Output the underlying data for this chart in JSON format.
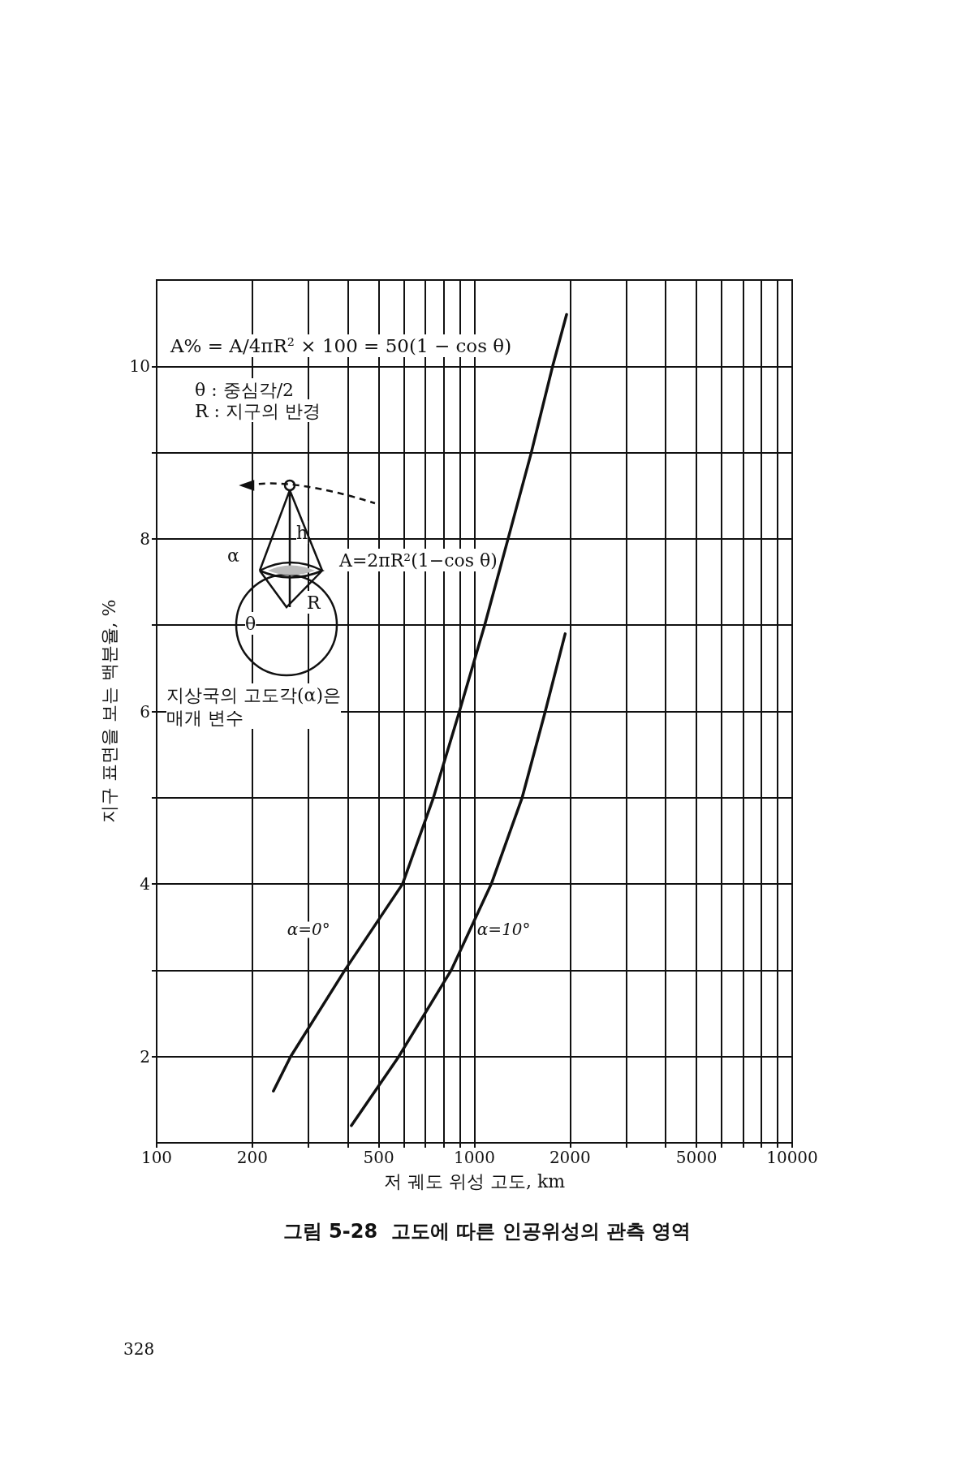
{
  "chart_data": {
    "type": "line",
    "title": "그림 5-28  고도에 따른 인공위성의 관측 영역",
    "xlabel": "저 궤도 위성 고도, km",
    "ylabel": "지구 표면을 보는 백분율, %",
    "log": "x",
    "grid": true,
    "legend": false,
    "marker": "none",
    "line_style": "solid",
    "xlim": [
      100,
      10000
    ],
    "ylim": [
      1,
      11
    ],
    "xticks": [
      100,
      200,
      {
        "value": 300,
        "label": null
      },
      {
        "value": 400,
        "label": null
      },
      500,
      {
        "value": 600,
        "label": null
      },
      {
        "value": 700,
        "label": null
      },
      {
        "value": 800,
        "label": null
      },
      {
        "value": 900,
        "label": null
      },
      1000,
      2000,
      {
        "value": 3000,
        "label": null
      },
      {
        "value": 4000,
        "label": null
      },
      5000,
      {
        "value": 6000,
        "label": null
      },
      {
        "value": 7000,
        "label": null
      },
      {
        "value": 8000,
        "label": null
      },
      {
        "value": 9000,
        "label": null
      },
      10000
    ],
    "yticks": [
      2,
      {
        "value": 3,
        "label": null
      },
      4,
      {
        "value": 5,
        "label": null
      },
      6,
      {
        "value": 7,
        "label": null
      },
      8,
      {
        "value": 9,
        "label": null
      },
      10
    ],
    "series": [
      {
        "name": "α=0°",
        "color": "#111111",
        "x": [
          233,
          264,
          391,
          594,
          743,
          897,
          1077,
          1276,
          1510,
          1762,
          1950
        ],
        "values": [
          1.6,
          2,
          3,
          4,
          5,
          6,
          7,
          8,
          9,
          10,
          10.6
        ]
      },
      {
        "name": "α=10°",
        "color": "#111111",
        "x": [
          410,
          578,
          845,
          1130,
          1413,
          1671,
          1930
        ],
        "values": [
          1.2,
          2,
          3,
          4,
          5,
          6,
          6.9
        ]
      }
    ],
    "annotations": [
      "A% = A/4πR² × 100 = 50(1 − cos θ)",
      "θ : 중심각/2",
      "R : 지구의 반경",
      "지상국의 고도각(α)은\n매개 변수",
      "A=2πR²(1−cos θ)",
      "α",
      "h",
      "R",
      "θ",
      "328"
    ]
  }
}
